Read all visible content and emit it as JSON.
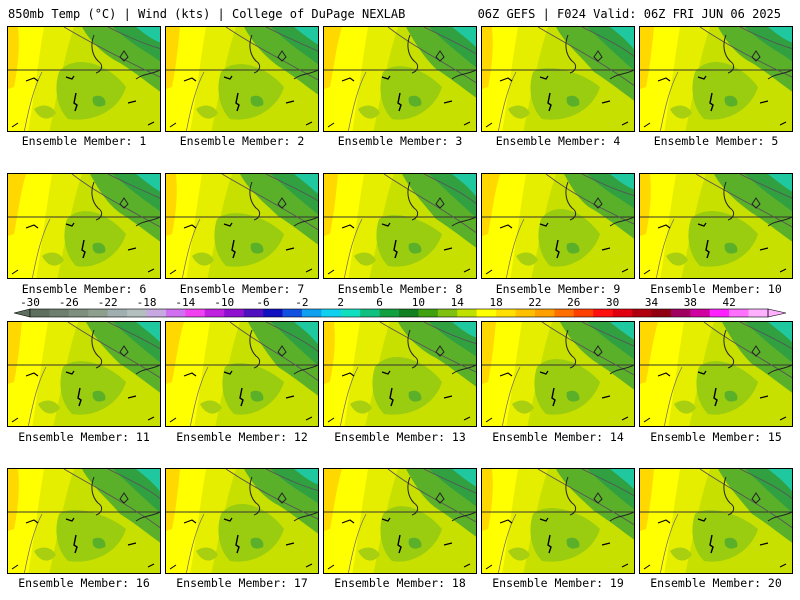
{
  "header": {
    "left": "850mb Temp (°C) | Wind (kts) | College of DuPage NEXLAB",
    "right": "06Z GEFS | F024 Valid: 06Z FRI JUN 06 2025"
  },
  "members": [
    {
      "label": "Ensemble Member: 1"
    },
    {
      "label": "Ensemble Member: 2"
    },
    {
      "label": "Ensemble Member: 3"
    },
    {
      "label": "Ensemble Member: 4"
    },
    {
      "label": "Ensemble Member: 5"
    },
    {
      "label": "Ensemble Member: 6"
    },
    {
      "label": "Ensemble Member: 7"
    },
    {
      "label": "Ensemble Member: 8"
    },
    {
      "label": "Ensemble Member: 9"
    },
    {
      "label": "Ensemble Member: 10"
    },
    {
      "label": "Ensemble Member: 11"
    },
    {
      "label": "Ensemble Member: 12"
    },
    {
      "label": "Ensemble Member: 13"
    },
    {
      "label": "Ensemble Member: 14"
    },
    {
      "label": "Ensemble Member: 15"
    },
    {
      "label": "Ensemble Member: 16"
    },
    {
      "label": "Ensemble Member: 17"
    },
    {
      "label": "Ensemble Member: 18"
    },
    {
      "label": "Ensemble Member: 19"
    },
    {
      "label": "Ensemble Member: 20"
    }
  ],
  "colorbar": {
    "tick_labels": [
      "-30",
      "-26",
      "-22",
      "-18",
      "-14",
      "-10",
      "-6",
      "-2",
      "2",
      "6",
      "10",
      "14",
      "18",
      "22",
      "26",
      "30",
      "34",
      "38",
      "42"
    ],
    "colors": [
      "#5f6f5f",
      "#6f7f6f",
      "#7f8f7f",
      "#8f9f8f",
      "#9fafaf",
      "#b3bfbf",
      "#c8a8e0",
      "#d070f0",
      "#f040f0",
      "#c020e0",
      "#9010d0",
      "#5010c0",
      "#1010c0",
      "#1050e0",
      "#10a0f0",
      "#10d0f0",
      "#10e0c0",
      "#10c080",
      "#10a040",
      "#108020",
      "#40a010",
      "#80c010",
      "#c0e000",
      "#ffff00",
      "#ffe000",
      "#ffc000",
      "#ffa000",
      "#ff7000",
      "#ff4000",
      "#ff1010",
      "#e00010",
      "#b00010",
      "#900010",
      "#a00060",
      "#d000a0",
      "#ff20ff",
      "#ff70ff",
      "#ffb0ff"
    ]
  }
}
